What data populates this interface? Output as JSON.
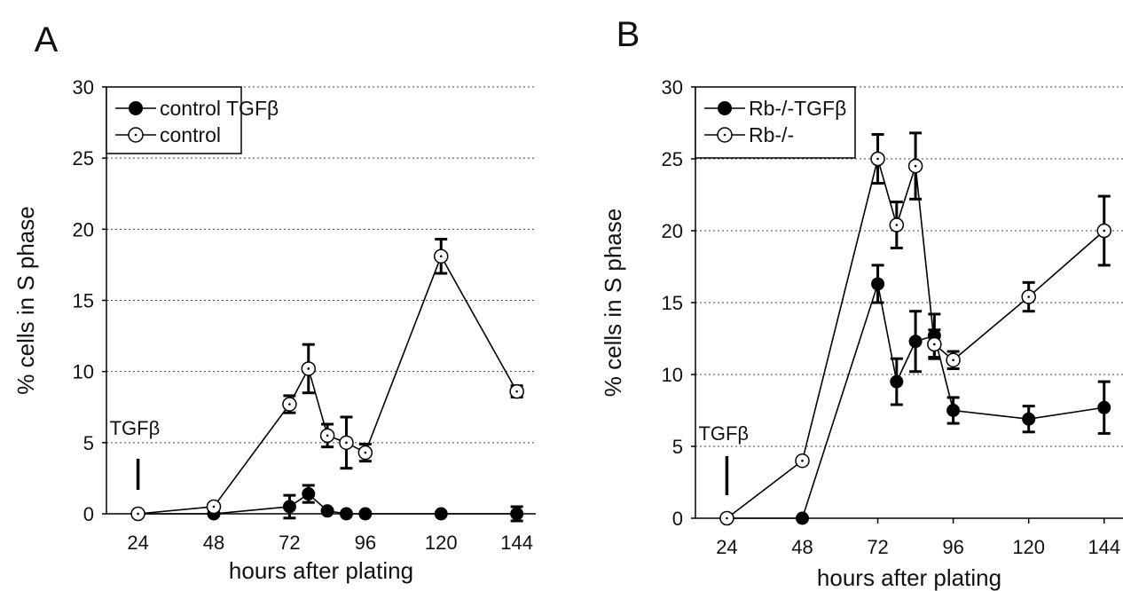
{
  "chart_data": [
    {
      "panel_label": "A",
      "type": "line",
      "xlabel": "hours after plating",
      "ylabel": "% cells in S phase",
      "xlim": [
        14,
        150
      ],
      "ylim": [
        0,
        30
      ],
      "xticks": [
        24,
        48,
        72,
        96,
        120,
        144
      ],
      "yticks": [
        0,
        5,
        10,
        15,
        20,
        25,
        30
      ],
      "grid": "horizontal dotted",
      "legend_position": "top-left",
      "annotation": {
        "text": "TGFβ",
        "x": 24
      },
      "series": [
        {
          "name": "control TGFβ",
          "marker": "filled-circle",
          "x": [
            24,
            48,
            72,
            78,
            84,
            90,
            96,
            120,
            144
          ],
          "y": [
            0,
            0,
            0.5,
            1.4,
            0.2,
            0,
            0,
            0,
            0
          ],
          "err": [
            0,
            0,
            0.8,
            0.6,
            0,
            0,
            0,
            0,
            0.5
          ]
        },
        {
          "name": "control",
          "marker": "open-circle-dot",
          "x": [
            24,
            48,
            72,
            78,
            84,
            90,
            96,
            120,
            144
          ],
          "y": [
            0,
            0.5,
            7.7,
            10.2,
            5.5,
            5.0,
            4.3,
            18.1,
            8.6
          ],
          "err": [
            0,
            0,
            0.6,
            1.7,
            0.8,
            1.8,
            0.6,
            1.2,
            0.4
          ]
        }
      ]
    },
    {
      "panel_label": "B",
      "type": "line",
      "xlabel": "hours after plating",
      "ylabel": "% cells in S phase",
      "xlim": [
        14,
        150
      ],
      "ylim": [
        0,
        30
      ],
      "xticks": [
        24,
        48,
        72,
        96,
        120,
        144
      ],
      "yticks": [
        0,
        5,
        10,
        15,
        20,
        25,
        30
      ],
      "grid": "horizontal dotted",
      "legend_position": "top-left",
      "annotation": {
        "text": "TGFβ",
        "x": 24
      },
      "series": [
        {
          "name": "Rb-/-TGFβ",
          "marker": "filled-circle",
          "x": [
            24,
            48,
            72,
            78,
            84,
            90,
            96,
            120,
            144
          ],
          "y": [
            0,
            0,
            16.3,
            9.5,
            12.3,
            12.7,
            7.5,
            6.9,
            7.7
          ],
          "err": [
            0,
            0,
            1.3,
            1.6,
            2.1,
            1.5,
            0.9,
            0.9,
            1.8
          ]
        },
        {
          "name": "Rb-/-",
          "marker": "open-circle-dot",
          "x": [
            24,
            48,
            72,
            78,
            84,
            90,
            96,
            120,
            144
          ],
          "y": [
            0,
            4.0,
            25.0,
            20.4,
            24.5,
            12.1,
            11.0,
            15.4,
            20.0
          ],
          "err": [
            0,
            0,
            1.7,
            1.6,
            2.3,
            1.0,
            0.6,
            1.0,
            2.4
          ]
        }
      ]
    }
  ]
}
